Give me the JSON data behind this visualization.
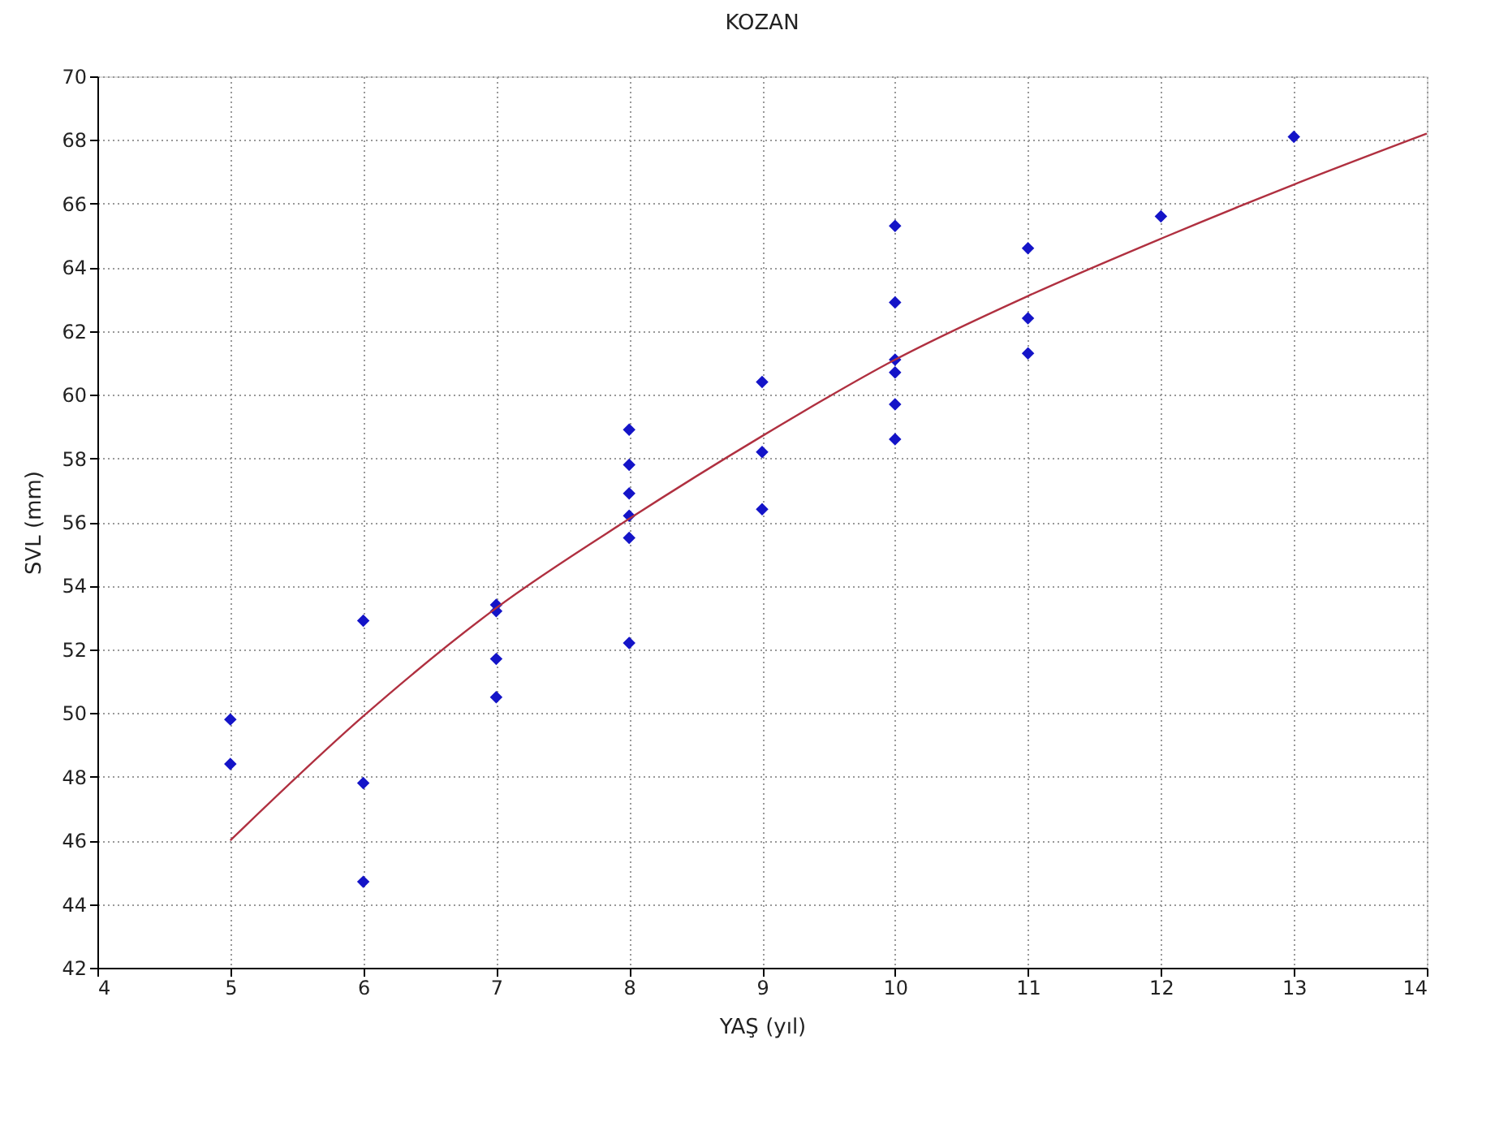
{
  "chart_data": {
    "type": "scatter",
    "title": "KOZAN",
    "xlabel": "YAŞ (yıl)",
    "ylabel": "SVL (mm)",
    "xlim": [
      4,
      14
    ],
    "xticks": [
      4,
      5,
      6,
      7,
      8,
      9,
      10,
      11,
      12,
      13,
      14
    ],
    "ylim": [
      42,
      70
    ],
    "yticks": [
      42,
      44,
      46,
      48,
      50,
      52,
      54,
      56,
      58,
      60,
      62,
      64,
      66,
      68,
      70
    ],
    "grid": true,
    "legend": false,
    "marker": "diamond",
    "series": [
      {
        "color": "#1414c8",
        "x": [
          5,
          5,
          6,
          6,
          6,
          7,
          7,
          7,
          7,
          8,
          8,
          8,
          8,
          8,
          8,
          9,
          9,
          9,
          10,
          10,
          10,
          10,
          10,
          10,
          11,
          11,
          11,
          12,
          13
        ],
        "values": [
          49.8,
          48.4,
          52.9,
          47.8,
          44.7,
          53.4,
          53.2,
          51.7,
          50.5,
          58.9,
          57.8,
          56.9,
          56.2,
          55.5,
          52.2,
          60.4,
          58.2,
          56.4,
          65.3,
          62.9,
          61.1,
          60.7,
          59.7,
          58.6,
          64.6,
          62.4,
          61.3,
          65.6,
          68.1
        ]
      },
      {
        "type": "line",
        "color": "#b03040",
        "line_style": "solid",
        "marker": "none",
        "x": [
          5,
          6,
          7,
          8,
          9,
          10,
          11,
          12,
          13,
          14
        ],
        "values": [
          46.0,
          49.9,
          53.3,
          56.1,
          58.7,
          61.1,
          63.1,
          64.9,
          66.6,
          68.2
        ]
      }
    ]
  }
}
